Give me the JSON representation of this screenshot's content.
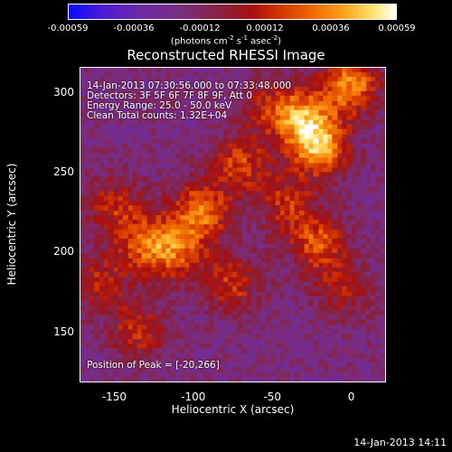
{
  "colorbar": {
    "ticks": [
      "-0.00059",
      "-0.00036",
      "-0.00012",
      "0.00012",
      "0.00036",
      "0.00059"
    ],
    "units": "(photons cm",
    "units_exp1": "-2",
    "units_mid": " s",
    "units_exp2": "-1",
    "units_mid2": " asec",
    "units_exp3": "-2",
    "units_end": ")"
  },
  "chart_data": {
    "type": "heatmap",
    "title": "Reconstructed RHESSI Image",
    "xlabel": "Heliocentric X (arcsec)",
    "ylabel": "Heliocentric Y (arcsec)",
    "xlim": [
      -172,
      22
    ],
    "ylim": [
      118,
      316
    ],
    "xticks": [
      "-150",
      "-100",
      "-50",
      "0"
    ],
    "xtick_values": [
      -150,
      -100,
      -50,
      0
    ],
    "yticks": [
      "150",
      "200",
      "250",
      "300"
    ],
    "ytick_values": [
      150,
      200,
      250,
      300
    ],
    "color_range": [
      -0.00059,
      0.00059
    ],
    "peak": [
      -20,
      266
    ],
    "sources": [
      {
        "x": -20,
        "y": 266,
        "v": 0.00059
      },
      {
        "x": 0,
        "y": 305,
        "v": 0.00052
      },
      {
        "x": -30,
        "y": 285,
        "v": 0.00042
      },
      {
        "x": -95,
        "y": 225,
        "v": 0.00046
      },
      {
        "x": -70,
        "y": 255,
        "v": 0.00036
      },
      {
        "x": -130,
        "y": 205,
        "v": 0.0004
      },
      {
        "x": -150,
        "y": 230,
        "v": 0.0003
      },
      {
        "x": -110,
        "y": 200,
        "v": 0.00036
      },
      {
        "x": -20,
        "y": 205,
        "v": 0.0004
      },
      {
        "x": -40,
        "y": 230,
        "v": 0.0003
      },
      {
        "x": -75,
        "y": 180,
        "v": 0.00032
      },
      {
        "x": -135,
        "y": 150,
        "v": 0.0003
      },
      {
        "x": -50,
        "y": 290,
        "v": 0.00026
      },
      {
        "x": -160,
        "y": 180,
        "v": 0.00028
      },
      {
        "x": -5,
        "y": 175,
        "v": 0.00024
      }
    ],
    "annotations": [
      "14-Jan-2013 07:30:56.000 to 07:33:48.000",
      "Detectors: 3F 5F 6F 7F 8F 9F, Att 0",
      "Energy Range: 25.0 - 50.0 keV",
      "Clean    Total counts: 1.32E+04"
    ],
    "peak_label": "Position of Peak = [-20,266]"
  },
  "footer": "14-Jan-2013 14:11"
}
